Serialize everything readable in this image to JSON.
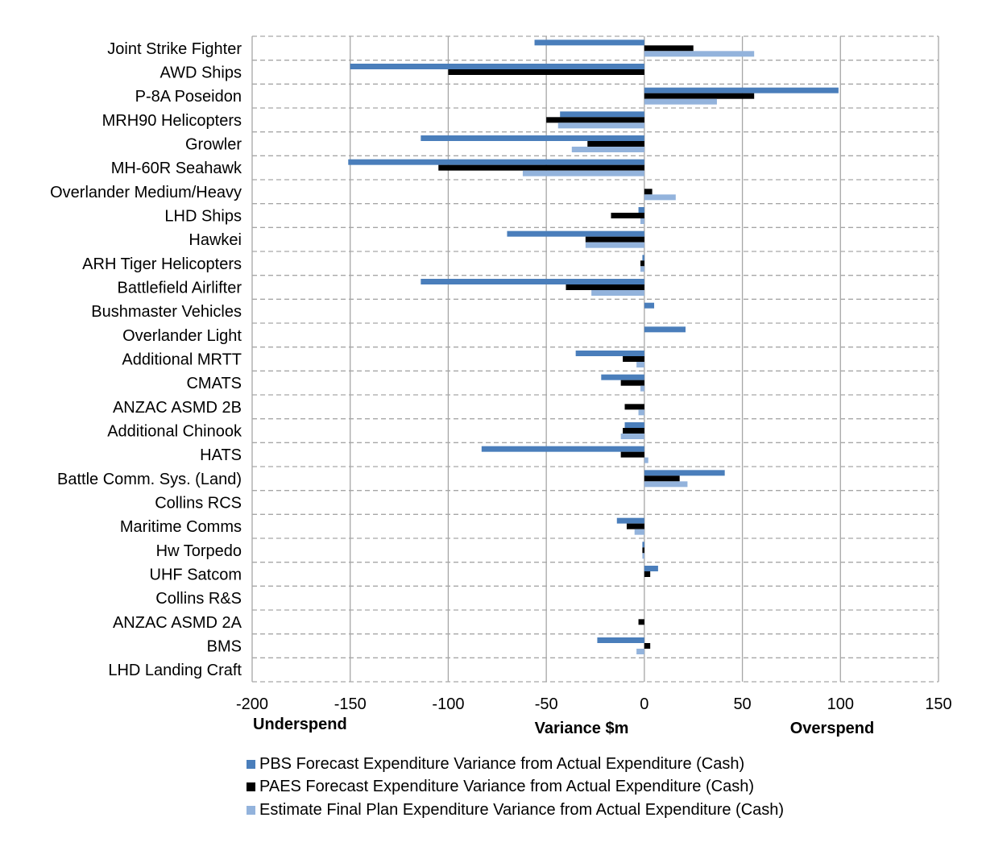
{
  "chart_data": {
    "type": "bar",
    "orientation": "horizontal",
    "categories": [
      "Joint Strike Fighter",
      "AWD Ships",
      "P-8A Poseidon",
      "MRH90 Helicopters",
      "Growler",
      "MH-60R Seahawk",
      "Overlander Medium/Heavy",
      "LHD Ships",
      "Hawkei",
      "ARH Tiger Helicopters",
      "Battlefield Airlifter",
      "Bushmaster Vehicles",
      "Overlander Light",
      "Additional MRTT",
      "CMATS",
      "ANZAC ASMD 2B",
      "Additional Chinook",
      "HATS",
      "Battle Comm. Sys. (Land)",
      "Collins RCS",
      "Maritime Comms",
      "Hw Torpedo",
      "UHF Satcom",
      "Collins R&S",
      "ANZAC ASMD 2A",
      "BMS",
      "LHD Landing Craft"
    ],
    "series": [
      {
        "name": "PBS Forecast Expenditure Variance from Actual Expenditure (Cash)",
        "color": "#4a7ebb",
        "values": [
          -56,
          -150,
          99,
          -43,
          -114,
          -151,
          0,
          -3,
          -70,
          -1,
          -114,
          5,
          21,
          -35,
          -22,
          0,
          -10,
          -83,
          41,
          0,
          -14,
          -1,
          7,
          0,
          0,
          -24,
          0
        ]
      },
      {
        "name": "PAES Forecast Expenditure Variance from Actual Expenditure (Cash)",
        "color": "#000000",
        "values": [
          25,
          -100,
          56,
          -50,
          -29,
          -105,
          4,
          -17,
          -30,
          -2,
          -40,
          0,
          0,
          -11,
          -12,
          -10,
          -11,
          -12,
          18,
          0,
          -9,
          -1,
          3,
          0,
          -3,
          3,
          0
        ]
      },
      {
        "name": "Estimate Final Plan Expenditure Variance from Actual Expenditure (Cash)",
        "color": "#93b3dc",
        "values": [
          56,
          0,
          37,
          -44,
          -37,
          -62,
          16,
          -2,
          -30,
          -2,
          -27,
          0,
          0,
          -4,
          -2,
          -3,
          -12,
          2,
          22,
          0,
          -5,
          -1,
          0,
          0,
          0,
          -4,
          0
        ]
      }
    ],
    "xlim": [
      -200,
      150
    ],
    "xticks": [
      -200,
      -150,
      -100,
      -50,
      0,
      50,
      100,
      150
    ],
    "xticklabels": [
      "-200",
      "-150",
      "-100",
      "-50",
      "0",
      "50",
      "100",
      "150"
    ],
    "xlabel": "Variance $m",
    "left_annotation": "Underspend",
    "right_annotation": "Overspend",
    "grid": {
      "vertical": "solid",
      "horizontal": "dashed"
    },
    "legend_position": "bottom"
  }
}
